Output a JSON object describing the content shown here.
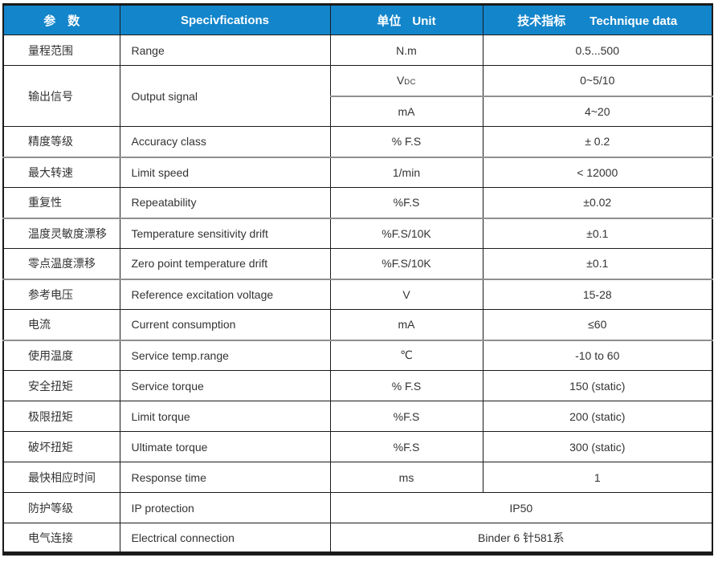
{
  "colors": {
    "header_bg": "#1385cb",
    "header_text": "#ffffff",
    "border_dark": "#1a1a1a",
    "border_gray": "#8f8f8f",
    "body_text": "#333333"
  },
  "table": {
    "header": {
      "param_zh": "参　数",
      "spec": "Specivfications",
      "unit_zh": "单位",
      "unit_en": "Unit",
      "tech_zh": "技术指标",
      "tech_en": "Technique data"
    },
    "rows": [
      {
        "param": "量程范围",
        "spec": "Range",
        "unit": "N.m",
        "value": "0.5...500"
      },
      {
        "param": "输出信号",
        "spec": "Output signal",
        "rowspan": 2,
        "unit": "V",
        "unit_sub": "DC",
        "value": "0~5/10"
      },
      {
        "unit": "mA",
        "value": "4~20"
      },
      {
        "param": "精度等级",
        "spec": "Accuracy class",
        "unit": "% F.S",
        "value": "± 0.2"
      },
      {
        "param": "最大转速",
        "spec": "Limit speed",
        "unit": "1/min",
        "value": "< 12000"
      },
      {
        "param": "重复性",
        "spec": "Repeatability",
        "unit": "%F.S",
        "value": "±0.02"
      },
      {
        "param": "温度灵敏度漂移",
        "spec": "Temperature sensitivity drift",
        "unit": "%F.S/10K",
        "value": "±0.1"
      },
      {
        "param": "零点温度漂移",
        "spec": "Zero point temperature drift",
        "unit": "%F.S/10K",
        "value": "±0.1"
      },
      {
        "param": "参考电压",
        "spec": "Reference excitation voltage",
        "unit": "V",
        "value": "15-28"
      },
      {
        "param": "电流",
        "spec": "Current consumption",
        "unit": "mA",
        "value": "≤60"
      },
      {
        "param": "使用温度",
        "spec": "Service temp.range",
        "unit": "℃",
        "value": "-10 to 60"
      },
      {
        "param": "安全扭矩",
        "spec": "Service torque",
        "unit": "% F.S",
        "value": "150 (static)"
      },
      {
        "param": "极限扭矩",
        "spec": "Limit torque",
        "unit": "%F.S",
        "value": "200 (static)"
      },
      {
        "param": "破坏扭矩",
        "spec": "Ultimate torque",
        "unit": "%F.S",
        "value": "300 (static)"
      },
      {
        "param": "最快相应时间",
        "spec": "Response time",
        "unit": "ms",
        "value": "1"
      },
      {
        "param": "防护等级",
        "spec": "IP protection",
        "merged": "IP50"
      },
      {
        "param": "电气连接",
        "spec": "Electrical connection",
        "merged": "Binder 6 针581系"
      }
    ],
    "gray_divider_row_indexes": [
      1,
      3,
      5,
      7,
      9
    ]
  }
}
